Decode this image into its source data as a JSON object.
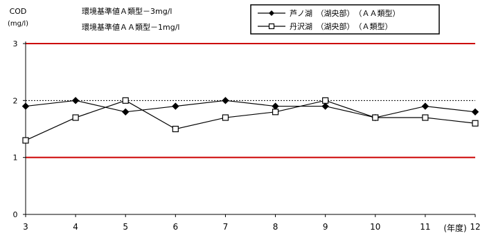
{
  "chart_data": {
    "type": "line",
    "ylabel": "COD",
    "yunit": "(mg/l)",
    "xlabel": "(年度)",
    "x": [
      "3",
      "4",
      "5",
      "6",
      "7",
      "8",
      "9",
      "10",
      "11",
      "12"
    ],
    "yticks": [
      "0",
      "1",
      "2",
      "3"
    ],
    "ylim": [
      0,
      3
    ],
    "series": [
      {
        "name": "芦ノ湖　（湖央部）　（ＡＡ類型）",
        "marker": "filled-diamond",
        "color": "#000000",
        "values": [
          1.9,
          2.0,
          1.8,
          1.9,
          2.0,
          1.9,
          1.9,
          1.7,
          1.9,
          1.8
        ]
      },
      {
        "name": "丹沢湖　（湖央部）　（Ａ類型）",
        "marker": "open-square",
        "color": "#000000",
        "values": [
          1.3,
          1.7,
          2.0,
          1.5,
          1.7,
          1.8,
          2.0,
          1.7,
          1.7,
          1.6
        ]
      }
    ],
    "reference_lines": [
      {
        "value": 3,
        "style": "solid",
        "color": "#cc0000",
        "label": "環境基準値Ａ類型－3mg/l"
      },
      {
        "value": 1,
        "style": "solid",
        "color": "#cc0000",
        "label": "環境基準値ＡＡ類型－1mg/l"
      },
      {
        "value": 2,
        "style": "dotted",
        "color": "#000000"
      }
    ],
    "legend_position": "top"
  }
}
